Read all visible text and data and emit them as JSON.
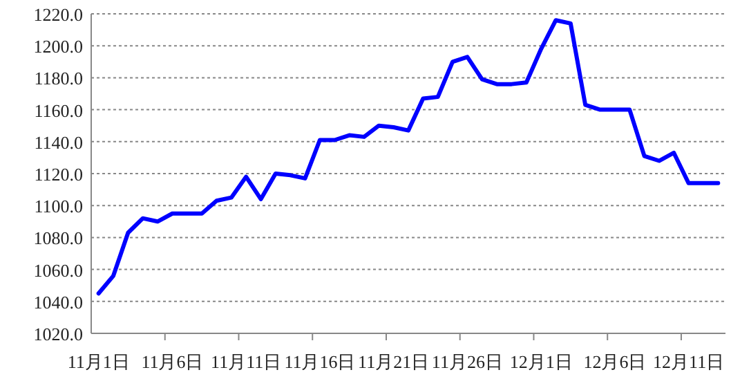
{
  "chart_data": {
    "type": "line",
    "categories": [
      "11月1日",
      null,
      null,
      null,
      null,
      "11月6日",
      null,
      null,
      null,
      null,
      "11月11日",
      null,
      null,
      null,
      null,
      "11月16日",
      null,
      null,
      null,
      null,
      "11月21日",
      null,
      null,
      null,
      null,
      "11月26日",
      null,
      null,
      null,
      null,
      "12月1日",
      null,
      null,
      null,
      null,
      "12月6日",
      null,
      null,
      null,
      null,
      "12月11日",
      null,
      null
    ],
    "series": [
      {
        "color": "#0000ff",
        "values": [
          1045,
          1056,
          1083,
          1092,
          1090,
          1095,
          1095,
          1095,
          1103,
          1105,
          1118,
          1104,
          1120,
          1119,
          1117,
          1141,
          1141,
          1144,
          1143,
          1150,
          1149,
          1147,
          1167,
          1168,
          1190,
          1193,
          1179,
          1176,
          1176,
          1177,
          1198,
          1216,
          1214,
          1163,
          1160,
          1160,
          1160,
          1131,
          1128,
          1133,
          1114,
          1114,
          1114
        ]
      }
    ],
    "ylim": [
      1020,
      1220
    ],
    "yticks": [
      {
        "value": 1020,
        "label": "1020.0"
      },
      {
        "value": 1040,
        "label": "1040.0"
      },
      {
        "value": 1060,
        "label": "1060.0"
      },
      {
        "value": 1080,
        "label": "1080.0"
      },
      {
        "value": 1100,
        "label": "1100.0"
      },
      {
        "value": 1120,
        "label": "1120.0"
      },
      {
        "value": 1140,
        "label": "1140.0"
      },
      {
        "value": 1160,
        "label": "1160.0"
      },
      {
        "value": 1180,
        "label": "1180.0"
      },
      {
        "value": 1200,
        "label": "1200.0"
      },
      {
        "value": 1220,
        "label": "1220.0"
      }
    ],
    "grid": "y"
  }
}
